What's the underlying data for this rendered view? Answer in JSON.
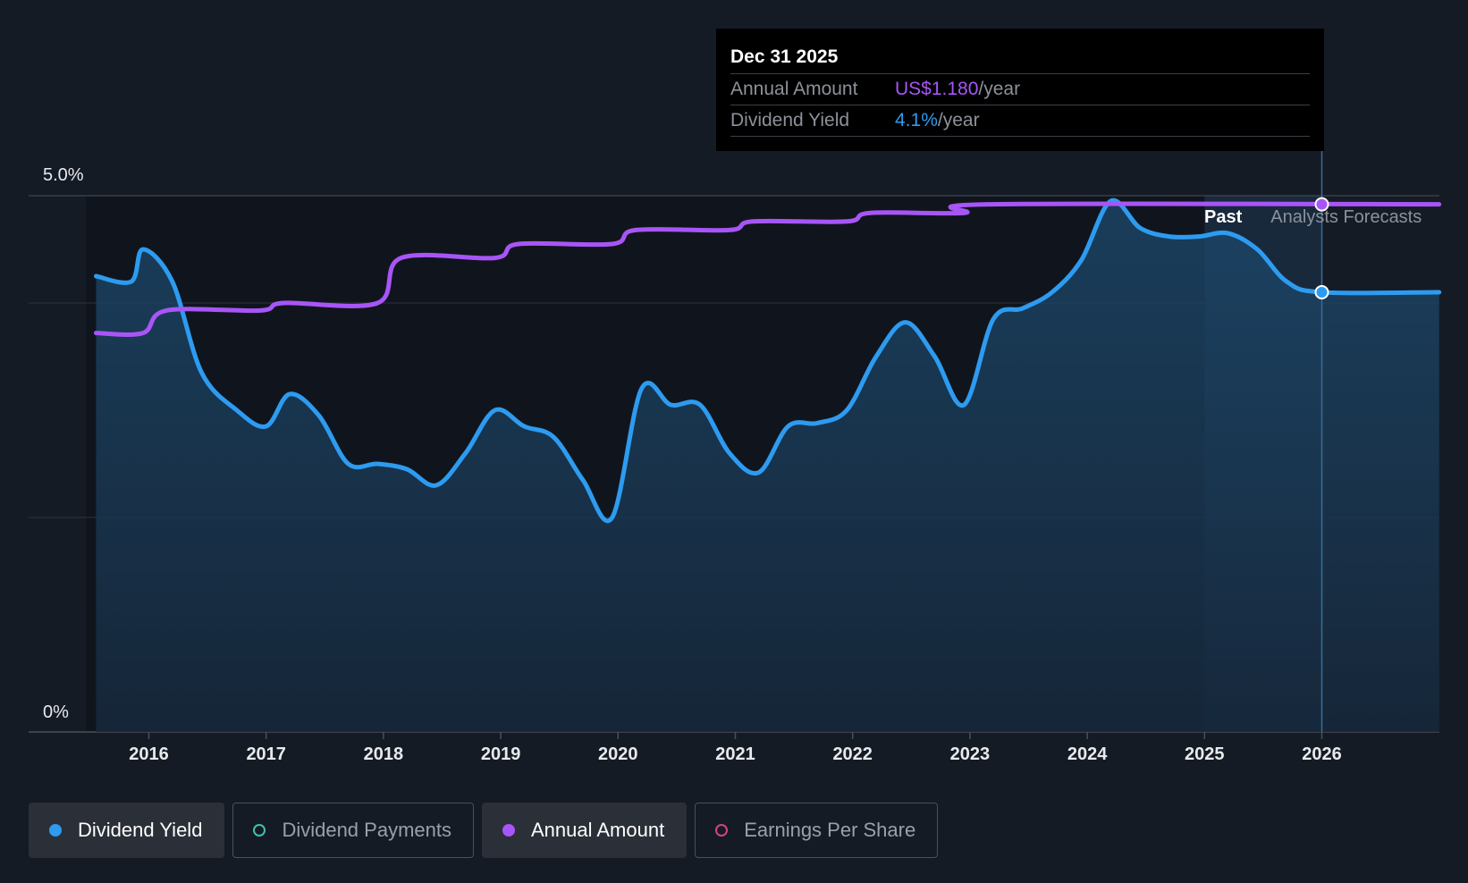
{
  "tooltip": {
    "date": "Dec 31 2025",
    "annual_label": "Annual Amount",
    "annual_value": "US$1.180",
    "annual_unit": "/year",
    "yield_label": "Dividend Yield",
    "yield_value": "4.1%",
    "yield_unit": "/year"
  },
  "legend": {
    "items": [
      {
        "label": "Dividend Yield",
        "color": "#2d9bf0",
        "active": true,
        "filled": true
      },
      {
        "label": "Dividend Payments",
        "color": "#3fc1b0",
        "active": false,
        "filled": false
      },
      {
        "label": "Annual Amount",
        "color": "#a855f7",
        "active": true,
        "filled": true
      },
      {
        "label": "Earnings Per Share",
        "color": "#d6457a",
        "active": false,
        "filled": false
      }
    ]
  },
  "chart_data": {
    "type": "line",
    "ylim": [
      0,
      5.0
    ],
    "y_tick_labels": [
      "5.0%",
      "0%"
    ],
    "xlim": [
      2015.5,
      2027.0
    ],
    "x_tick_labels": [
      "2016",
      "2017",
      "2018",
      "2019",
      "2020",
      "2021",
      "2022",
      "2023",
      "2024",
      "2025",
      "2026"
    ],
    "past_label": "Past",
    "forecast_label": "Analysts Forecasts",
    "forecast_start": 2025.0,
    "highlight_x": 2026.0,
    "colors": {
      "yield": "#2d9bf0",
      "annual": "#a855f7"
    },
    "series": [
      {
        "name": "Dividend Yield",
        "x": [
          2015.55,
          2015.85,
          2015.95,
          2016.2,
          2016.45,
          2016.75,
          2017.0,
          2017.2,
          2017.45,
          2017.7,
          2017.95,
          2018.2,
          2018.45,
          2018.7,
          2018.95,
          2019.2,
          2019.45,
          2019.7,
          2019.95,
          2020.2,
          2020.45,
          2020.7,
          2020.95,
          2021.2,
          2021.45,
          2021.7,
          2021.95,
          2022.2,
          2022.45,
          2022.7,
          2022.95,
          2023.2,
          2023.45,
          2023.7,
          2023.95,
          2024.2,
          2024.45,
          2024.7,
          2024.95,
          2025.2,
          2025.45,
          2025.7,
          2026.0,
          2027.0
        ],
        "values": [
          4.25,
          4.2,
          4.5,
          4.2,
          3.35,
          3.0,
          2.85,
          3.15,
          2.95,
          2.5,
          2.5,
          2.45,
          2.3,
          2.6,
          3.0,
          2.85,
          2.75,
          2.35,
          2.0,
          3.2,
          3.05,
          3.05,
          2.6,
          2.42,
          2.85,
          2.88,
          3.0,
          3.5,
          3.82,
          3.5,
          3.05,
          3.85,
          3.95,
          4.1,
          4.4,
          4.95,
          4.7,
          4.62,
          4.62,
          4.65,
          4.5,
          4.2,
          4.1,
          4.1
        ]
      },
      {
        "name": "Annual Amount",
        "x": [
          2015.55,
          2015.95,
          2016.15,
          2016.95,
          2017.15,
          2017.95,
          2018.15,
          2018.95,
          2019.15,
          2019.95,
          2020.15,
          2020.95,
          2021.15,
          2021.95,
          2022.15,
          2022.95,
          2023.15,
          2027.0
        ],
        "values": [
          3.72,
          3.72,
          3.93,
          3.93,
          4.0,
          4.0,
          4.42,
          4.42,
          4.55,
          4.55,
          4.68,
          4.68,
          4.76,
          4.76,
          4.84,
          4.84,
          4.92,
          4.92
        ]
      }
    ]
  }
}
